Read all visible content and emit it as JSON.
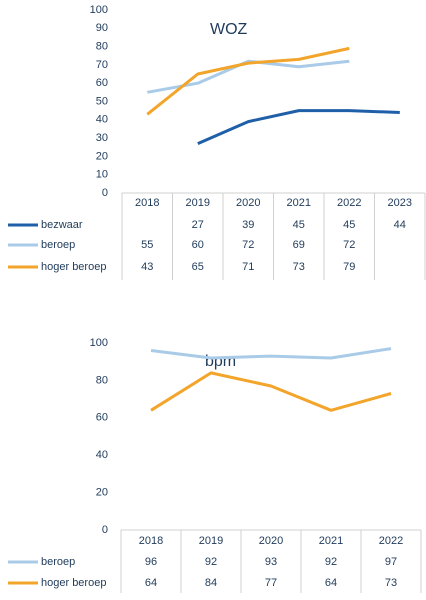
{
  "chart_data": [
    {
      "type": "line",
      "title": "WOZ",
      "categories": [
        "2018",
        "2019",
        "2020",
        "2021",
        "2022",
        "2023"
      ],
      "series": [
        {
          "name": "bezwaar",
          "color": "#1f5fa8",
          "values": [
            null,
            27,
            39,
            45,
            45,
            44
          ]
        },
        {
          "name": "beroep",
          "color": "#a9cbe8",
          "values": [
            55,
            60,
            72,
            69,
            72,
            null
          ]
        },
        {
          "name": "hoger beroep",
          "color": "#f2a52a",
          "values": [
            43,
            65,
            71,
            73,
            79,
            null
          ]
        }
      ],
      "ylim": [
        0,
        100
      ],
      "yticks": [
        0,
        10,
        20,
        30,
        40,
        50,
        60,
        70,
        80,
        90,
        100
      ]
    },
    {
      "type": "line",
      "title": "bpm",
      "categories": [
        "2018",
        "2019",
        "2020",
        "2021",
        "2022"
      ],
      "series": [
        {
          "name": "beroep",
          "color": "#a9cbe8",
          "values": [
            96,
            92,
            93,
            92,
            97
          ]
        },
        {
          "name": "hoger beroep",
          "color": "#f2a52a",
          "values": [
            64,
            84,
            77,
            64,
            73
          ]
        }
      ],
      "ylim": [
        0,
        100
      ],
      "yticks": [
        0,
        20,
        40,
        60,
        80,
        100
      ]
    }
  ]
}
